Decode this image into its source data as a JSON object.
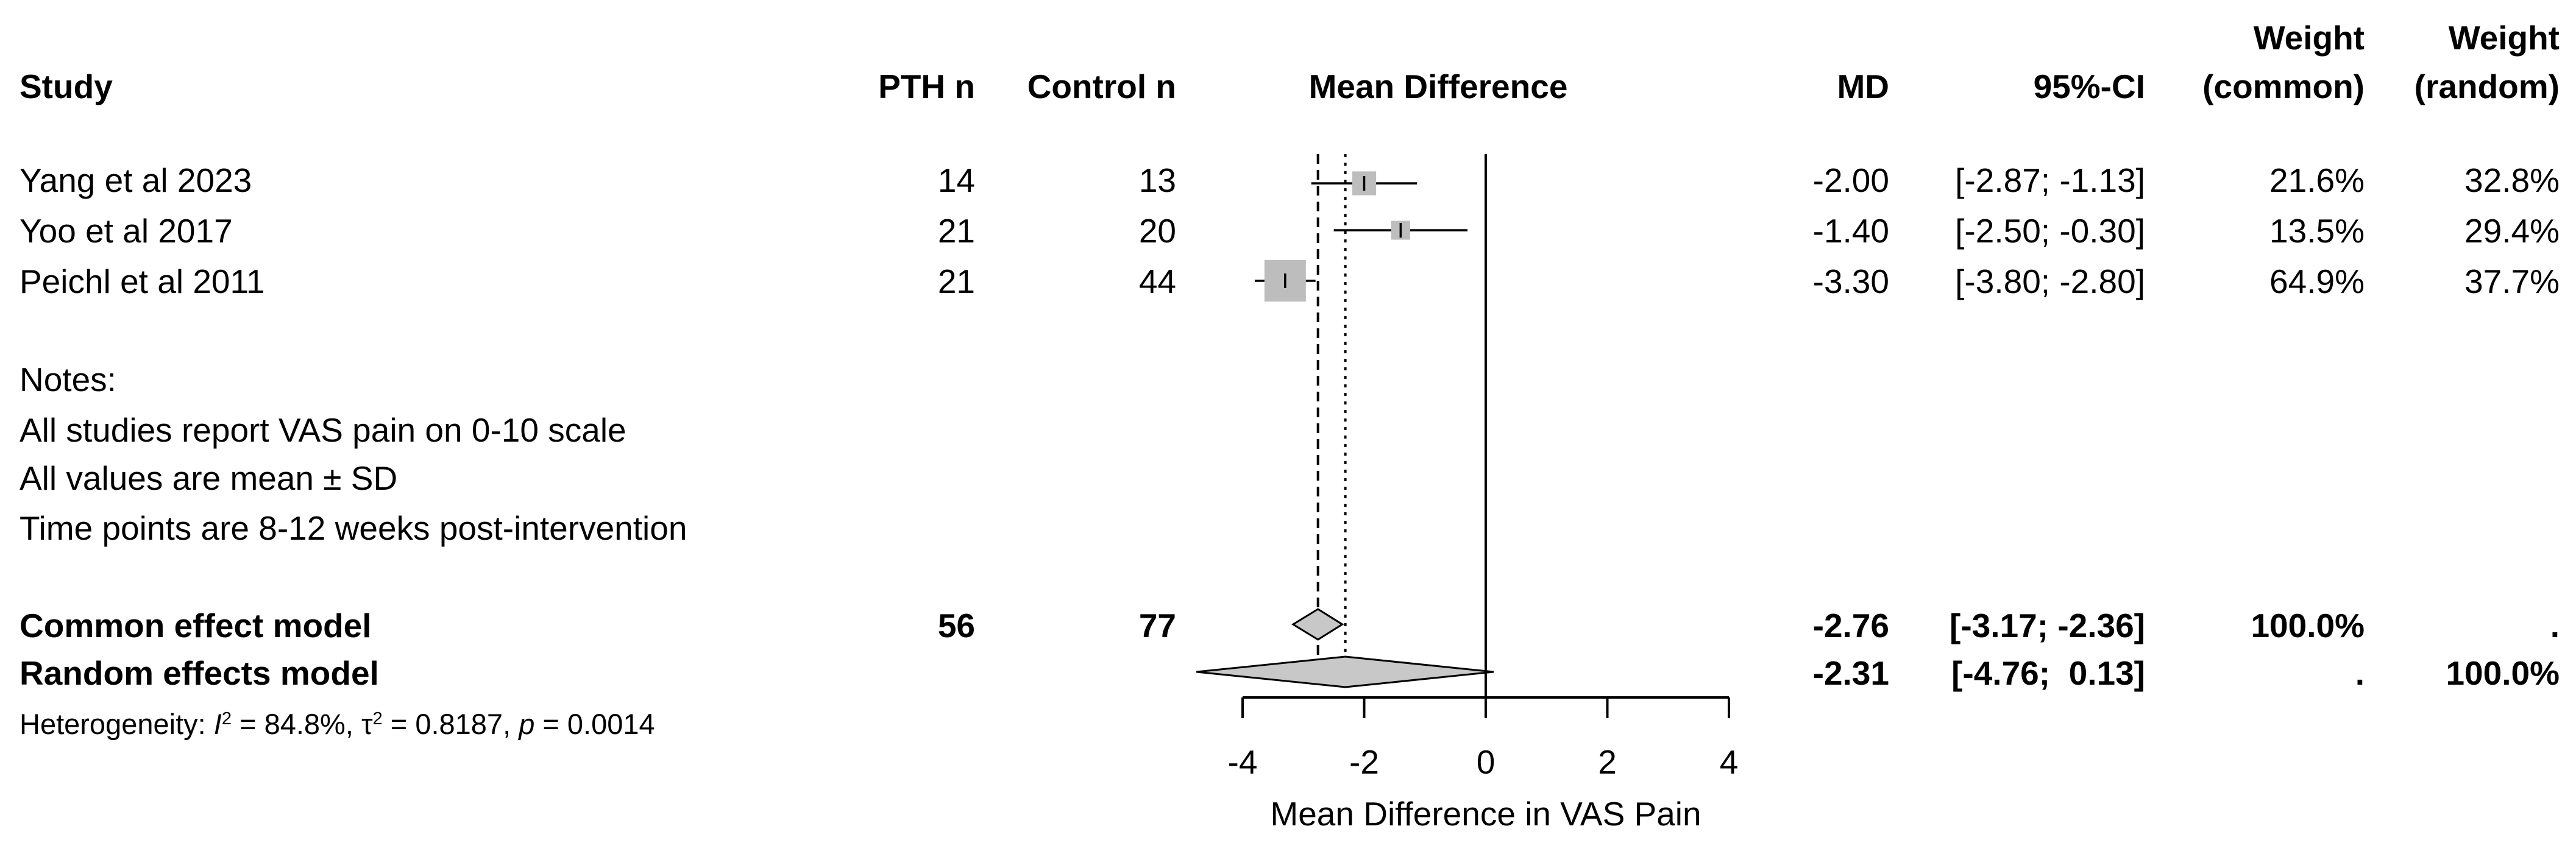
{
  "headers": {
    "study": "Study",
    "pth_n": "PTH n",
    "control_n": "Control n",
    "mean_difference": "Mean Difference",
    "md": "MD",
    "ci": "95%-CI",
    "weight_common_line1": "Weight",
    "weight_common_line2": "(common)",
    "weight_random_line1": "Weight",
    "weight_random_line2": "(random)"
  },
  "studies": [
    {
      "name": "Yang et al 2023",
      "pth_n": "14",
      "control_n": "13",
      "md": "-2.00",
      "ci": "[-2.87; -1.13]",
      "weight_common": "21.6%",
      "weight_random": "32.8%"
    },
    {
      "name": "Yoo et al 2017",
      "pth_n": "21",
      "control_n": "20",
      "md": "-1.40",
      "ci": "[-2.50; -0.30]",
      "weight_common": "13.5%",
      "weight_random": "29.4%"
    },
    {
      "name": "Peichl et al 2011",
      "pth_n": "21",
      "control_n": "44",
      "md": "-3.30",
      "ci": "[-3.80; -2.80]",
      "weight_common": "64.9%",
      "weight_random": "37.7%"
    }
  ],
  "notes": {
    "title": "Notes:",
    "lines": [
      "All studies report VAS pain on 0-10 scale",
      "All values are mean ± SD",
      "Time points are 8-12 weeks post-intervention"
    ]
  },
  "summary": {
    "common": {
      "name": "Common effect model",
      "pth_n": "56",
      "control_n": "77",
      "md": "-2.76",
      "ci": "[-3.17; -2.36]",
      "weight_common": "100.0%",
      "weight_random": "."
    },
    "random": {
      "name": "Random effects model",
      "md": "-2.31",
      "ci": "[-4.76;  0.13]",
      "weight_common": ".",
      "weight_random": "100.0%"
    }
  },
  "heterogeneity": {
    "prefix": "Heterogeneity: ",
    "i2_label": "I",
    "i2_sup": "2",
    "i2_value": " = 84.8%, ",
    "tau_label": "τ",
    "tau_sup": "2",
    "tau_value": " = 0.8187, ",
    "p_label": "p",
    "p_value": " = 0.0014"
  },
  "chart_data": {
    "type": "forest",
    "xlabel": "Mean Difference in VAS Pain",
    "xlim": [
      -4,
      4
    ],
    "ticks": [
      -4,
      -2,
      0,
      2,
      4
    ],
    "tick_labels": [
      "-4",
      "-2",
      "0",
      "2",
      "4"
    ],
    "reference_line": 0,
    "studies": [
      {
        "name": "Yang et al 2023",
        "md": -2.0,
        "lower": -2.87,
        "upper": -1.13,
        "weight_common": 21.6
      },
      {
        "name": "Yoo et al 2017",
        "md": -1.4,
        "lower": -2.5,
        "upper": -0.3,
        "weight_common": 13.5
      },
      {
        "name": "Peichl et al 2011",
        "md": -3.3,
        "lower": -3.8,
        "upper": -2.8,
        "weight_common": 64.9
      }
    ],
    "common_effect": {
      "md": -2.76,
      "lower": -3.17,
      "upper": -2.36
    },
    "random_effects": {
      "md": -2.31,
      "lower": -4.76,
      "upper": 0.13
    },
    "colors": {
      "box": "#bdbdbd",
      "diamond": "#c8c8c8",
      "line": "#000000"
    }
  }
}
